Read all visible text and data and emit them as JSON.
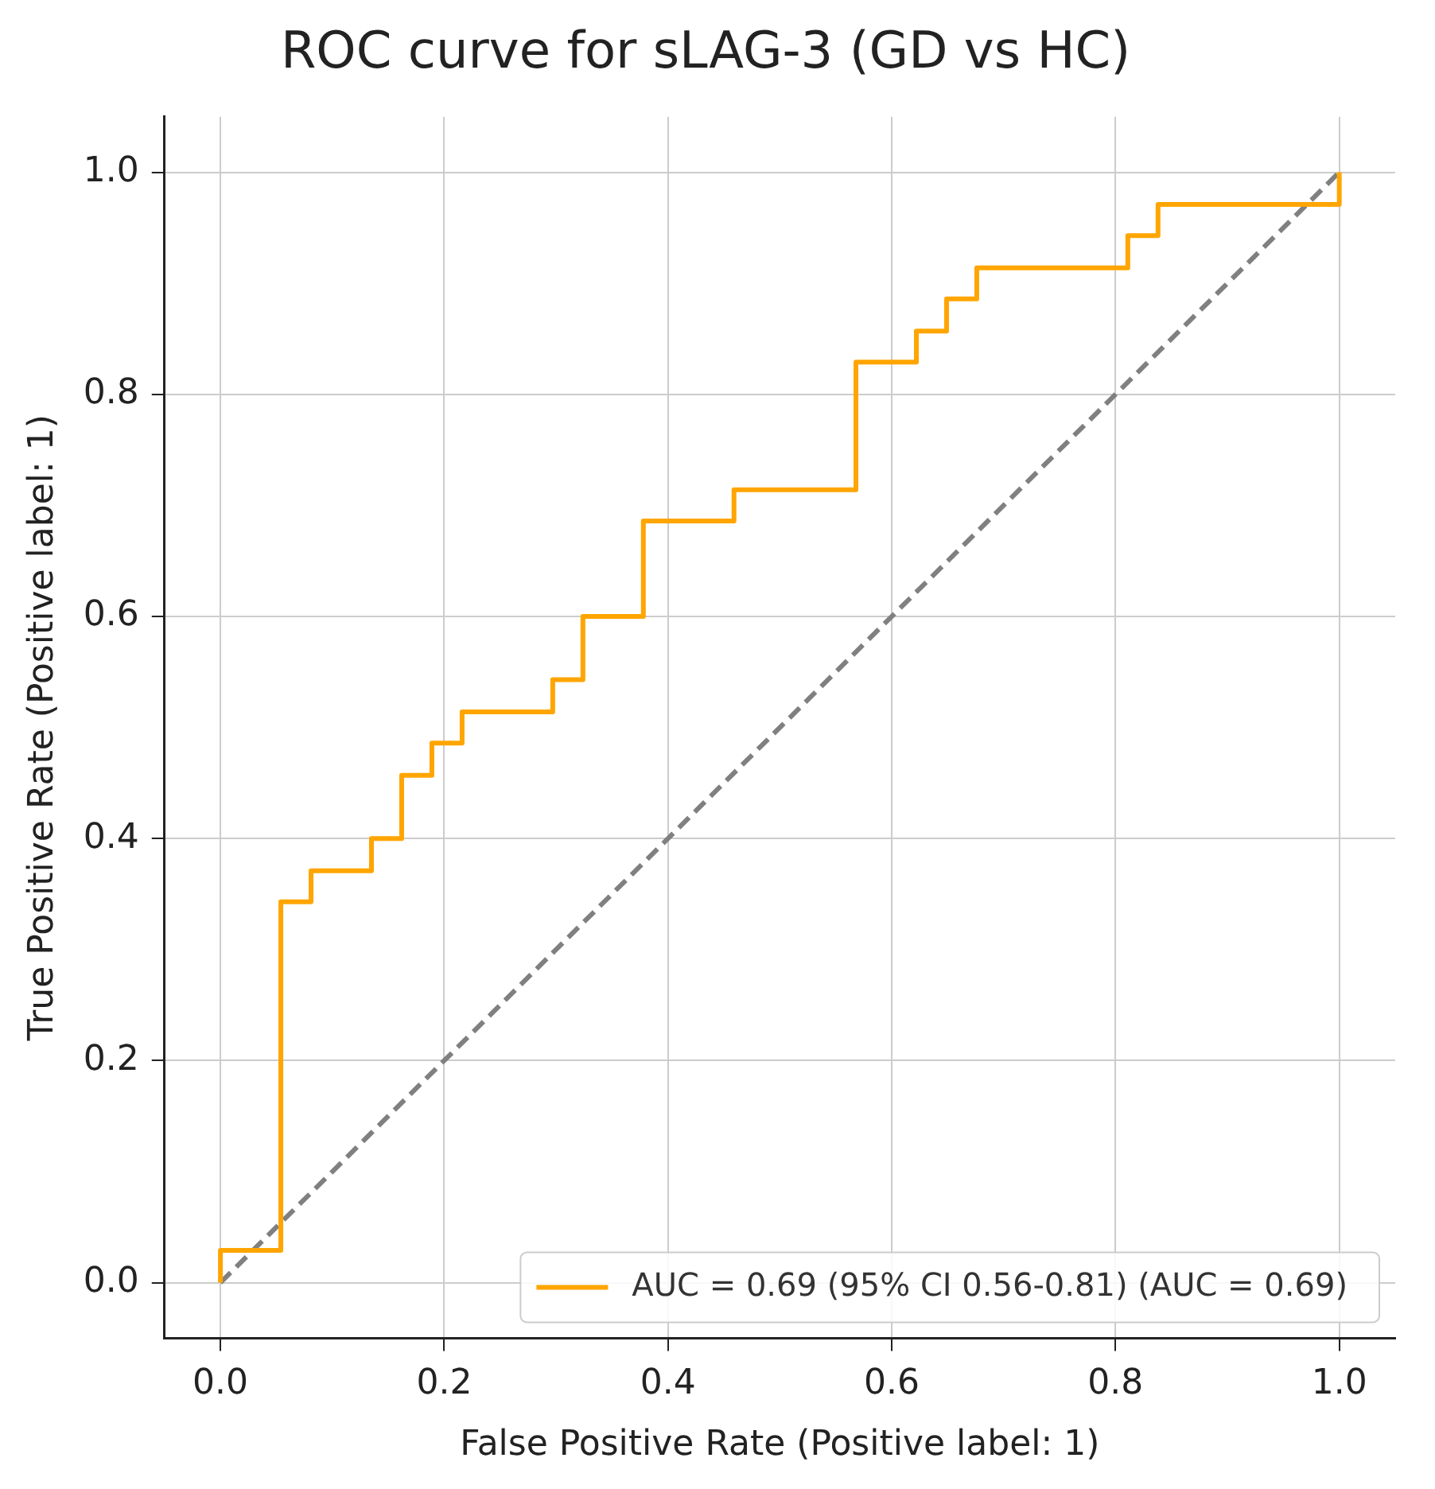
{
  "chart_data": {
    "type": "line",
    "title": "ROC curve for sLAG-3 (GD vs HC)",
    "xlabel": "False Positive Rate (Positive label: 1)",
    "ylabel": "True Positive Rate (Positive label: 1)",
    "xlim": [
      -0.05,
      1.05
    ],
    "ylim": [
      -0.05,
      1.05
    ],
    "xticks": [
      {
        "value": 0,
        "label": "0.0"
      },
      {
        "value": 0.2,
        "label": "0.2"
      },
      {
        "value": 0.4,
        "label": "0.4"
      },
      {
        "value": 0.6,
        "label": "0.6"
      },
      {
        "value": 0.8,
        "label": "0.8"
      },
      {
        "value": 1,
        "label": "1.0"
      }
    ],
    "yticks": [
      {
        "value": 0,
        "label": "0.0"
      },
      {
        "value": 0.2,
        "label": "0.2"
      },
      {
        "value": 0.4,
        "label": "0.4"
      },
      {
        "value": 0.6,
        "label": "0.6"
      },
      {
        "value": 0.8,
        "label": "0.8"
      },
      {
        "value": 1,
        "label": "1.0"
      }
    ],
    "grid": true,
    "legend": "bottom right",
    "marker": "none",
    "series": [
      {
        "name": "AUC = 0.69 (95% CI 0.56-0.81) (AUC = 0.69)",
        "color": "#ffa500",
        "line_style": "solid",
        "x": [
          0,
          0,
          0.054,
          0.054,
          0.081,
          0.081,
          0.135,
          0.135,
          0.162,
          0.162,
          0.189,
          0.189,
          0.216,
          0.216,
          0.297,
          0.297,
          0.324,
          0.324,
          0.378,
          0.378,
          0.459,
          0.459,
          0.568,
          0.568,
          0.622,
          0.622,
          0.649,
          0.649,
          0.676,
          0.676,
          0.811,
          0.811,
          0.838,
          0.838,
          1,
          1
        ],
        "values": [
          0,
          0.029,
          0.029,
          0.343,
          0.343,
          0.371,
          0.371,
          0.4,
          0.4,
          0.457,
          0.457,
          0.486,
          0.486,
          0.514,
          0.514,
          0.543,
          0.543,
          0.6,
          0.6,
          0.686,
          0.686,
          0.714,
          0.714,
          0.829,
          0.829,
          0.857,
          0.857,
          0.886,
          0.886,
          0.914,
          0.914,
          0.943,
          0.943,
          0.971,
          0.971,
          1
        ]
      },
      {
        "color": "#808080",
        "line_style": "dashed",
        "x": [
          0,
          1
        ],
        "values": [
          0,
          1
        ]
      }
    ]
  }
}
